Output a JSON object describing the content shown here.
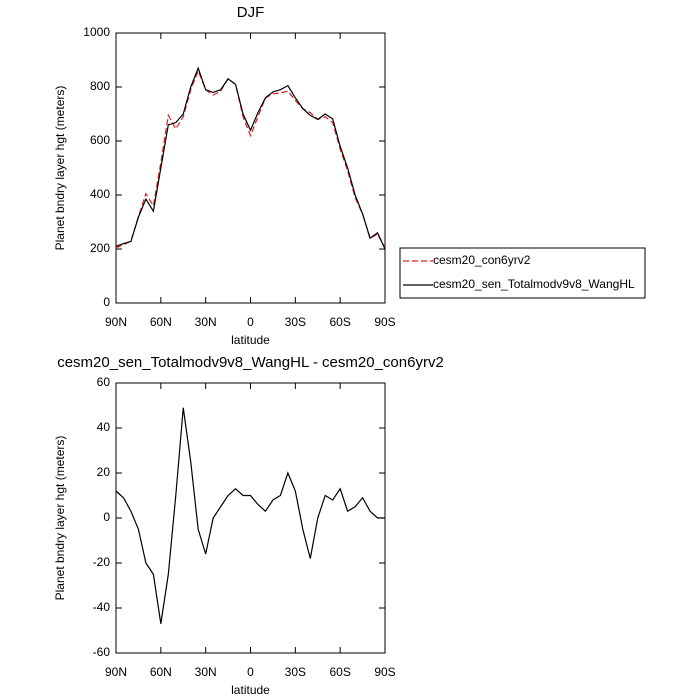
{
  "chart_data": [
    {
      "type": "line",
      "title": "DJF",
      "xlabel": "latitude",
      "ylabel": "Planet bndry layer hgt (meters)",
      "x": [
        90,
        85,
        80,
        75,
        70,
        65,
        60,
        55,
        50,
        45,
        40,
        35,
        30,
        25,
        20,
        15,
        10,
        5,
        0,
        -5,
        -10,
        -15,
        -20,
        -25,
        -30,
        -35,
        -40,
        -45,
        -50,
        -55,
        -60,
        -65,
        -70,
        -75,
        -80,
        -85,
        -90
      ],
      "xlim": [
        90,
        -90
      ],
      "xticks": [
        {
          "value": 90,
          "label": "90N"
        },
        {
          "value": 60,
          "label": "60N"
        },
        {
          "value": 30,
          "label": "30N"
        },
        0,
        {
          "value": -30,
          "label": "30S"
        },
        {
          "value": -60,
          "label": "60S"
        },
        {
          "value": -90,
          "label": "90S"
        }
      ],
      "ylim": [
        0,
        1000
      ],
      "yticks": [
        0,
        200,
        400,
        600,
        800,
        1000
      ],
      "legend": "right",
      "series": [
        {
          "name": "cesm20_con6yrv2",
          "color": "#e41a1c",
          "linestyle": "dashed",
          "values": [
            205,
            215,
            230,
            320,
            405,
            360,
            520,
            695,
            645,
            690,
            790,
            860,
            790,
            770,
            785,
            830,
            810,
            690,
            620,
            690,
            760,
            775,
            778,
            785,
            750,
            720,
            705,
            680,
            690,
            668,
            570,
            490,
            390,
            330,
            240,
            255,
            205
          ]
        },
        {
          "name": "cesm20_sen_Totalmodv9v8_WangHL",
          "color": "#000000",
          "linestyle": "solid",
          "values": [
            210,
            220,
            228,
            318,
            385,
            340,
            500,
            660,
            668,
            700,
            800,
            870,
            790,
            780,
            790,
            830,
            810,
            700,
            640,
            705,
            760,
            782,
            790,
            805,
            760,
            720,
            695,
            680,
            700,
            682,
            580,
            500,
            400,
            330,
            240,
            260,
            200
          ]
        }
      ]
    },
    {
      "type": "line",
      "title": "cesm20_sen_Totalmodv9v8_WangHL - cesm20_con6yrv2",
      "xlabel": "latitude",
      "ylabel": "Planet bndry layer hgt (meters)",
      "x": [
        90,
        85,
        80,
        75,
        70,
        65,
        60,
        55,
        50,
        45,
        40,
        35,
        30,
        25,
        20,
        15,
        10,
        5,
        0,
        -5,
        -10,
        -15,
        -20,
        -25,
        -30,
        -35,
        -40,
        -45,
        -50,
        -55,
        -60,
        -65,
        -70,
        -75,
        -80,
        -85,
        -90
      ],
      "xlim": [
        90,
        -90
      ],
      "xticks": [
        {
          "value": 90,
          "label": "90N"
        },
        {
          "value": 60,
          "label": "60N"
        },
        {
          "value": 30,
          "label": "30N"
        },
        0,
        {
          "value": -30,
          "label": "30S"
        },
        {
          "value": -60,
          "label": "60S"
        },
        {
          "value": -90,
          "label": "90S"
        }
      ],
      "ylim": [
        -60,
        60
      ],
      "yticks": [
        -60,
        -40,
        -20,
        0,
        20,
        40,
        60
      ],
      "color": "#000000",
      "values": [
        12,
        9,
        3,
        -5,
        -20,
        -25,
        -47,
        -25,
        10,
        49,
        25,
        -5,
        -16,
        0,
        5,
        10,
        13,
        10,
        10,
        6,
        3,
        8,
        10,
        20,
        12,
        -5,
        -18,
        0,
        10,
        8,
        13,
        3,
        5,
        9,
        3,
        0,
        0
      ]
    }
  ]
}
